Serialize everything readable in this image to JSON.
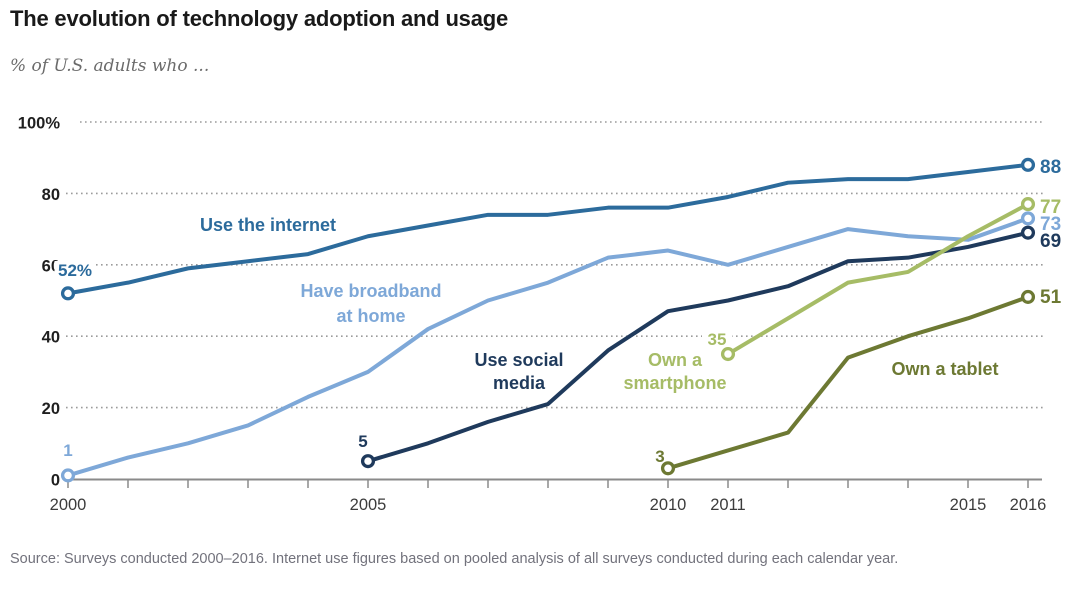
{
  "source": "Source: Surveys conducted 2000–2016. Internet use figures based on pooled analysis of all surveys conducted during each calendar year.",
  "chart_data": {
    "type": "line",
    "title": "The evolution of technology adoption and usage",
    "subtitle": "% of U.S. adults who ...",
    "xlabel": "",
    "ylabel": "% of U.S. adults",
    "x_range": [
      2000,
      2016
    ],
    "ylim": [
      0,
      100
    ],
    "grid": "dotted horizontal gridlines at 20,40,60,80,100",
    "legend_position": "inline labels on lines",
    "y_ticks": [
      0,
      20,
      40,
      60,
      80,
      100
    ],
    "y_tick_labels": [
      "0",
      "20",
      "40",
      "60",
      "80",
      "100%"
    ],
    "x_tick_labels": [
      "2000",
      "2005",
      "2010",
      "2011",
      "2015",
      "2016"
    ],
    "x_ticks_labeled": [
      2000,
      2005,
      2010,
      2011,
      2015,
      2016
    ],
    "axis_color": "#8a8a8a",
    "grid_color": "#9b9b9b",
    "series": [
      {
        "id": "internet",
        "name": "Use the internet",
        "label_lines": [
          "Use the internet"
        ],
        "color": "#2C6B9C",
        "start_year": 2000,
        "years": [
          2000,
          2001,
          2002,
          2003,
          2004,
          2005,
          2006,
          2007,
          2008,
          2009,
          2010,
          2011,
          2012,
          2013,
          2014,
          2015,
          2016
        ],
        "values": [
          52,
          55,
          59,
          61,
          63,
          68,
          71,
          74,
          74,
          76,
          76,
          79,
          83,
          84,
          84,
          86,
          88
        ],
        "start_label": "52%",
        "end_label": "88"
      },
      {
        "id": "broadband",
        "name": "Have broadband at home",
        "label_lines": [
          "Have broadband",
          "at home"
        ],
        "color": "#7EA8D8",
        "start_year": 2000,
        "years": [
          2000,
          2001,
          2002,
          2003,
          2004,
          2005,
          2006,
          2007,
          2008,
          2009,
          2010,
          2011,
          2012,
          2013,
          2014,
          2015,
          2016
        ],
        "values": [
          1,
          6,
          10,
          15,
          23,
          30,
          42,
          50,
          55,
          62,
          64,
          60,
          65,
          70,
          68,
          67,
          73
        ],
        "start_label": "1",
        "end_label": "73"
      },
      {
        "id": "social",
        "name": "Use social media",
        "label_lines": [
          "Use social",
          "media"
        ],
        "color": "#1F3A5C",
        "start_year": 2005,
        "years": [
          2005,
          2006,
          2007,
          2008,
          2009,
          2010,
          2011,
          2012,
          2013,
          2014,
          2015,
          2016
        ],
        "values": [
          5,
          10,
          16,
          21,
          36,
          47,
          50,
          54,
          61,
          62,
          65,
          69
        ],
        "start_label": "5",
        "end_label": "69"
      },
      {
        "id": "smartphone",
        "name": "Own a smartphone",
        "label_lines": [
          "Own a",
          "smartphone"
        ],
        "color": "#A6BC66",
        "start_year": 2011,
        "years": [
          2011,
          2012,
          2013,
          2014,
          2015,
          2016
        ],
        "values": [
          35,
          45,
          55,
          58,
          68,
          77
        ],
        "start_label": "35",
        "end_label": "77"
      },
      {
        "id": "tablet",
        "name": "Own a tablet",
        "label_lines": [
          "Own a tablet"
        ],
        "color": "#6D7933",
        "start_year": 2010,
        "years": [
          2010,
          2011,
          2012,
          2013,
          2014,
          2015,
          2016
        ],
        "values": [
          3,
          8,
          13,
          34,
          40,
          45,
          51
        ],
        "start_label": "3",
        "end_label": "51"
      }
    ]
  }
}
